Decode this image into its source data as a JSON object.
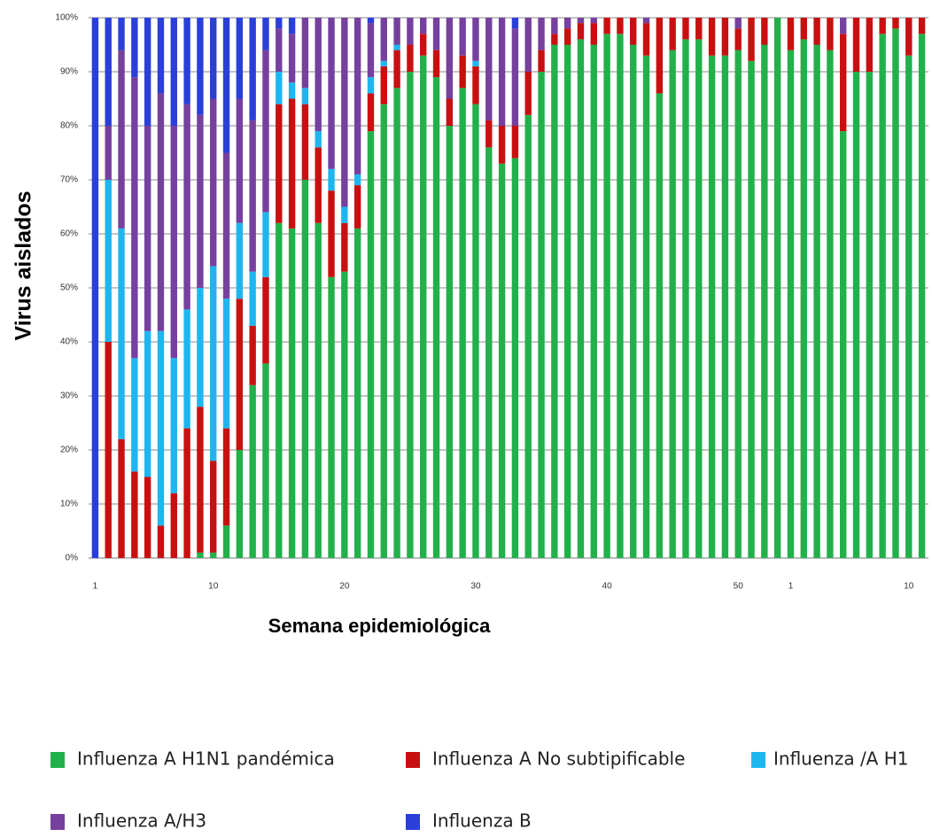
{
  "chart_data": {
    "type": "stacked_bar",
    "ylabel": "Virus aislados",
    "xlabel": "Semana epidemiológica",
    "categories": [
      "1",
      null,
      null,
      null,
      null,
      null,
      null,
      null,
      null,
      "10",
      null,
      null,
      null,
      null,
      null,
      null,
      null,
      null,
      null,
      "20",
      null,
      null,
      null,
      null,
      null,
      null,
      null,
      null,
      null,
      "30",
      null,
      null,
      null,
      null,
      null,
      null,
      null,
      null,
      null,
      "40",
      null,
      null,
      null,
      null,
      null,
      null,
      null,
      null,
      null,
      "50",
      null,
      null,
      null,
      "1",
      null,
      null,
      null,
      null,
      null,
      null,
      null,
      null,
      "10",
      null
    ],
    "series": [
      {
        "name": "Influenza A H1N1 pandémica",
        "color": "#22b04b",
        "values": [
          0,
          0,
          0,
          0,
          0,
          0,
          0,
          0,
          1,
          1,
          6,
          20,
          32,
          36,
          62,
          61,
          70,
          62,
          52,
          53,
          61,
          79,
          84,
          87,
          90,
          93,
          89,
          80,
          87,
          84,
          76,
          73,
          74,
          82,
          90,
          95,
          95,
          96,
          95,
          97,
          97,
          95,
          93,
          86,
          94,
          96,
          96,
          93,
          93,
          94,
          92,
          95,
          100,
          94,
          96,
          95,
          94,
          79,
          90,
          90,
          97,
          98,
          93,
          97
        ]
      },
      {
        "name": "Influenza A No subtipificable",
        "color": "#c81010",
        "values": [
          0,
          40,
          22,
          16,
          15,
          6,
          12,
          24,
          27,
          17,
          18,
          28,
          11,
          16,
          22,
          24,
          14,
          14,
          16,
          9,
          8,
          7,
          7,
          7,
          5,
          4,
          5,
          5,
          6,
          7,
          5,
          7,
          6,
          8,
          4,
          2,
          3,
          3,
          4,
          3,
          3,
          5,
          6,
          14,
          6,
          4,
          4,
          7,
          7,
          4,
          8,
          5,
          0,
          6,
          4,
          5,
          6,
          18,
          10,
          10,
          3,
          2,
          7,
          3
        ]
      },
      {
        "name": "Influenza /A H1",
        "color": "#1fb6f0",
        "values": [
          0,
          30,
          39,
          21,
          27,
          36,
          25,
          22,
          22,
          36,
          24,
          14,
          10,
          12,
          6,
          3,
          3,
          3,
          4,
          3,
          2,
          3,
          1,
          1,
          0,
          0,
          0,
          0,
          0,
          1,
          0,
          0,
          0,
          0,
          0,
          0,
          0,
          0,
          0,
          0,
          0,
          0,
          0,
          0,
          0,
          0,
          0,
          0,
          0,
          0,
          0,
          0,
          0,
          0,
          0,
          0,
          0,
          0,
          0,
          0,
          0,
          0,
          0,
          0
        ]
      },
      {
        "name": "Influenza A/H3",
        "color": "#76409e",
        "values": [
          0,
          10,
          33,
          52,
          38,
          44,
          43,
          38,
          32,
          31,
          27,
          23,
          28,
          30,
          8,
          9,
          13,
          21,
          28,
          35,
          29,
          10,
          8,
          5,
          5,
          3,
          6,
          15,
          7,
          8,
          19,
          20,
          18,
          10,
          6,
          3,
          2,
          1,
          1,
          0,
          0,
          0,
          1,
          0,
          0,
          0,
          0,
          0,
          0,
          2,
          0,
          0,
          0,
          0,
          0,
          0,
          0,
          3,
          0,
          0,
          0,
          0,
          0,
          0
        ]
      },
      {
        "name": "Influenza B",
        "color": "#2a3fd8",
        "values": [
          100,
          20,
          6,
          11,
          20,
          14,
          20,
          16,
          18,
          15,
          25,
          15,
          19,
          6,
          2,
          3,
          0,
          0,
          0,
          0,
          0,
          1,
          0,
          0,
          0,
          0,
          0,
          0,
          0,
          0,
          0,
          0,
          2,
          0,
          0,
          0,
          0,
          0,
          0,
          0,
          0,
          0,
          0,
          0,
          0,
          0,
          0,
          0,
          0,
          0,
          0,
          0,
          0,
          0,
          0,
          0,
          0,
          0,
          0,
          0,
          0,
          0,
          0,
          0
        ]
      }
    ],
    "ylim": [
      0,
      100
    ],
    "yticks": [
      {
        "value": 0,
        "label": "0%"
      },
      {
        "value": 10,
        "label": "10%"
      },
      {
        "value": 20,
        "label": "20%"
      },
      {
        "value": 30,
        "label": "30%"
      },
      {
        "value": 40,
        "label": "40%"
      },
      {
        "value": 50,
        "label": "50%"
      },
      {
        "value": 60,
        "label": "60%"
      },
      {
        "value": 70,
        "label": "70%"
      },
      {
        "value": 80,
        "label": "80%"
      },
      {
        "value": 90,
        "label": "90%"
      },
      {
        "value": 100,
        "label": "100%"
      }
    ],
    "grid": true,
    "legend": "bottom"
  }
}
